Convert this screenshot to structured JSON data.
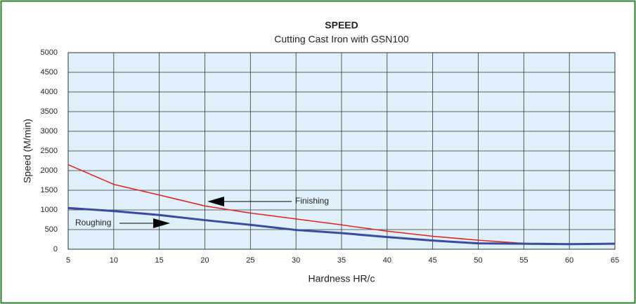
{
  "chart_data": {
    "type": "line",
    "title": "SPEED",
    "subtitle": "Cutting Cast Iron with GSN100",
    "x_label": "Hardness HR/c",
    "y_label": "Speed (M/min)",
    "series": [
      {
        "name": "Finishing",
        "color": "#e02020",
        "x": [
          5,
          10,
          15,
          20,
          25,
          30,
          35,
          40,
          45,
          50,
          55,
          58
        ],
        "values": [
          2150,
          1650,
          1380,
          1100,
          920,
          770,
          620,
          460,
          330,
          230,
          150,
          120
        ]
      },
      {
        "name": "Roughing",
        "color": "#3b4aa0",
        "x": [
          5,
          10,
          15,
          20,
          25,
          30,
          35,
          40,
          45,
          50,
          55,
          60,
          65
        ],
        "values": [
          1050,
          970,
          870,
          740,
          620,
          490,
          410,
          310,
          220,
          150,
          140,
          130,
          140
        ]
      }
    ],
    "xlim": [
      5,
      65
    ],
    "xticks": [
      5,
      10,
      15,
      20,
      25,
      30,
      35,
      40,
      45,
      50,
      55,
      60,
      65
    ],
    "ylim": [
      0,
      5000
    ],
    "yticks": [
      0,
      500,
      1000,
      1500,
      2000,
      2500,
      3000,
      3500,
      4000,
      4500,
      5000
    ],
    "grid": true
  }
}
